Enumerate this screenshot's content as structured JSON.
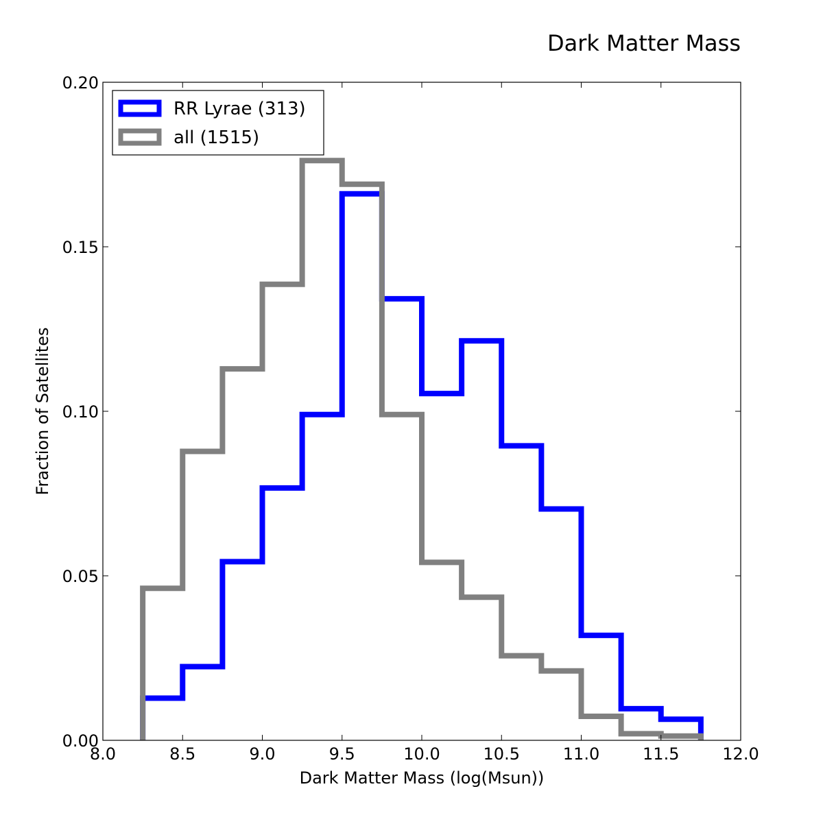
{
  "chart_data": {
    "type": "histogram-step",
    "title": "Dark Matter Mass",
    "xlabel": "Dark Matter Mass (log(Msun))",
    "ylabel": "Fraction of Satellites",
    "xlim": [
      8.0,
      12.0
    ],
    "ylim": [
      0.0,
      0.2
    ],
    "x_ticks": [
      8.0,
      8.5,
      9.0,
      9.5,
      10.0,
      10.5,
      11.0,
      11.5,
      12.0
    ],
    "x_tick_labels": [
      "8.0",
      "8.5",
      "9.0",
      "9.5",
      "10.0",
      "10.5",
      "11.0",
      "11.5",
      "12.0"
    ],
    "y_ticks": [
      0.0,
      0.05,
      0.1,
      0.15,
      0.2
    ],
    "y_tick_labels": [
      "0.00",
      "0.05",
      "0.10",
      "0.15",
      "0.20"
    ],
    "bin_edges": [
      8.25,
      8.5,
      8.75,
      9.0,
      9.25,
      9.5,
      9.75,
      10.0,
      10.25,
      10.5,
      10.75,
      11.0,
      11.25,
      11.5,
      11.75
    ],
    "legend_position": "top-left",
    "grid": false,
    "series": [
      {
        "name": "RR Lyrae (313)",
        "color": "#0000ff",
        "values": [
          0.0128,
          0.0224,
          0.0543,
          0.0767,
          0.099,
          0.1661,
          0.1342,
          0.1054,
          0.1214,
          0.0895,
          0.0703,
          0.0319,
          0.0096,
          0.0064
        ]
      },
      {
        "name": "all (1515)",
        "color": "#808080",
        "values": [
          0.0462,
          0.0878,
          0.1129,
          0.1386,
          0.1762,
          0.169,
          0.099,
          0.0541,
          0.0435,
          0.0257,
          0.0211,
          0.0073,
          0.002,
          0.0013
        ]
      }
    ]
  }
}
